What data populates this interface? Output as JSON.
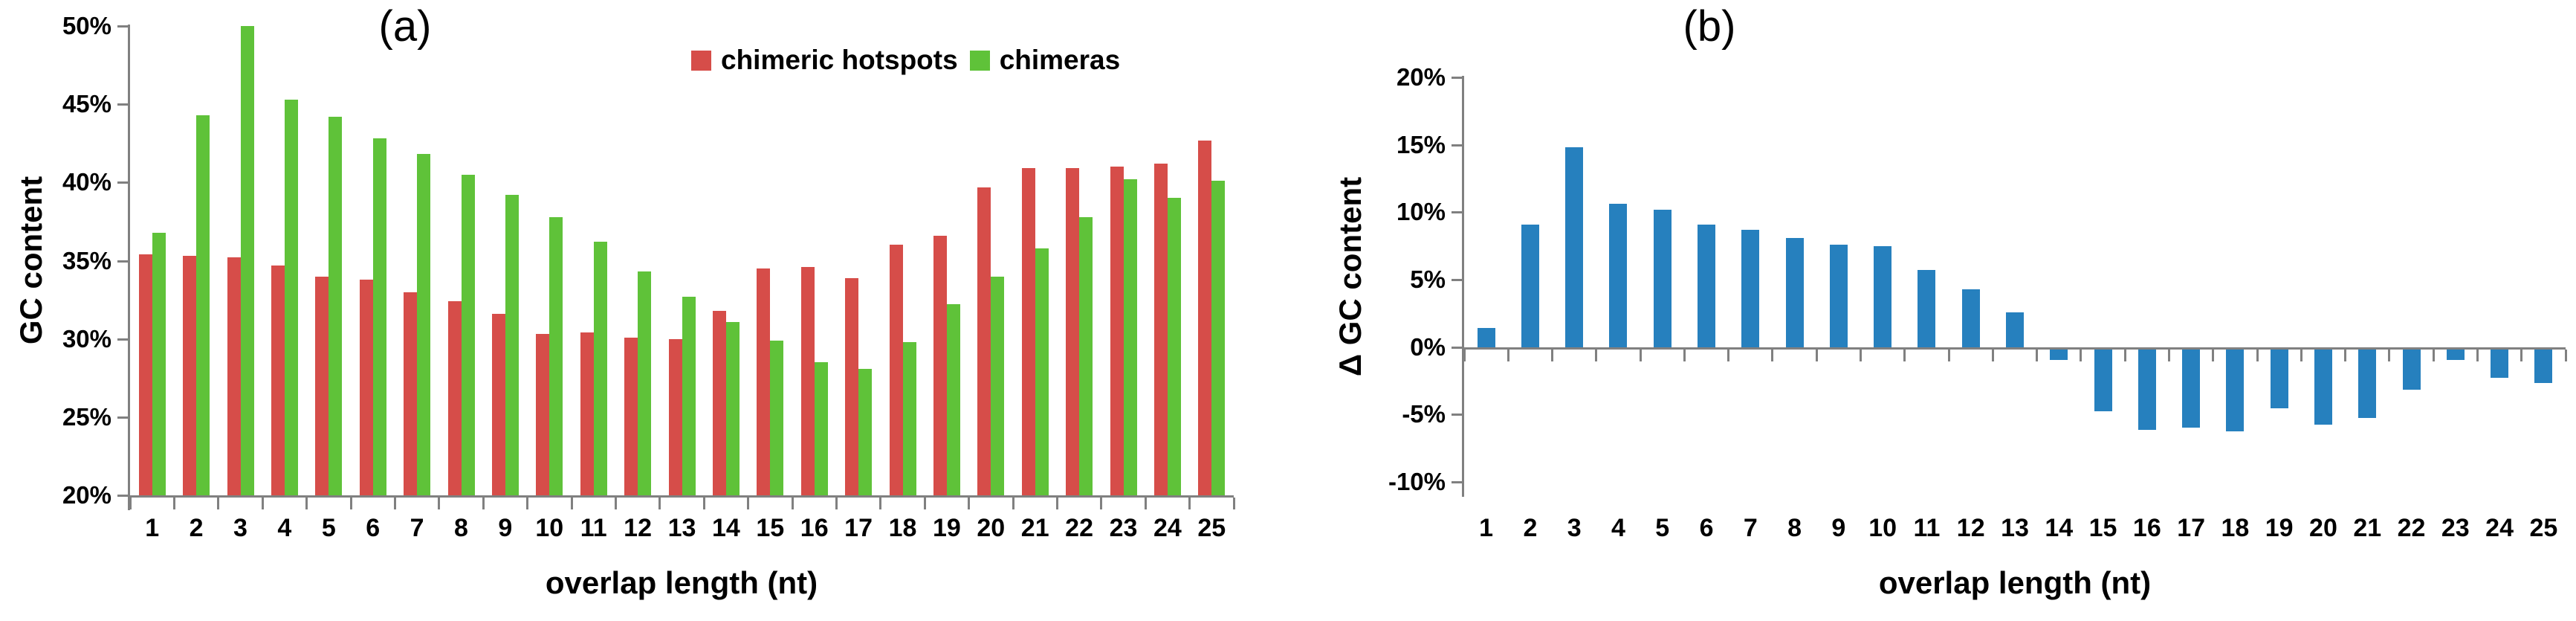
{
  "axis_color": "#808080",
  "text_color": "#000000",
  "background": "#ffffff",
  "chart_data": [
    {
      "type": "bar",
      "panel_label": "(a)",
      "xlabel": "overlap length (nt)",
      "ylabel": "GC content",
      "categories": [
        1,
        2,
        3,
        4,
        5,
        6,
        7,
        8,
        9,
        10,
        11,
        12,
        13,
        14,
        15,
        16,
        17,
        18,
        19,
        20,
        21,
        22,
        23,
        24,
        25
      ],
      "series": [
        {
          "name": "chimeric hotspots",
          "color": "#d64d49",
          "values": [
            35.4,
            35.3,
            35.2,
            34.7,
            34.0,
            33.8,
            33.0,
            32.4,
            31.6,
            30.3,
            30.4,
            30.1,
            30.0,
            31.8,
            34.5,
            34.6,
            33.9,
            36.0,
            36.6,
            39.7,
            40.9,
            40.9,
            41.0,
            41.2,
            42.7
          ]
        },
        {
          "name": "chimeras",
          "color": "#5fc239",
          "values": [
            36.8,
            44.3,
            50.0,
            45.3,
            44.2,
            42.8,
            41.8,
            40.5,
            39.2,
            37.8,
            36.2,
            34.3,
            32.7,
            31.1,
            29.9,
            28.5,
            28.1,
            29.8,
            32.2,
            34.0,
            35.8,
            37.8,
            40.2,
            39.0,
            40.1
          ]
        }
      ],
      "ylim": [
        20,
        50
      ],
      "ytick_step": 5,
      "ytick_labels": [
        "50%",
        "45%",
        "40%",
        "35%",
        "30%",
        "25%",
        "20%"
      ],
      "legend_position": "top",
      "grid": false
    },
    {
      "type": "bar",
      "panel_label": "(b)",
      "xlabel": "overlap length (nt)",
      "ylabel": "Δ GC content",
      "categories": [
        1,
        2,
        3,
        4,
        5,
        6,
        7,
        8,
        9,
        10,
        11,
        12,
        13,
        14,
        15,
        16,
        17,
        18,
        19,
        20,
        21,
        22,
        23,
        24,
        25
      ],
      "series": [
        {
          "name": "Δ GC content",
          "color": "#2680be",
          "values": [
            1.4,
            9.1,
            14.8,
            10.6,
            10.2,
            9.1,
            8.7,
            8.1,
            7.6,
            7.5,
            5.7,
            4.3,
            2.6,
            -0.8,
            -4.6,
            -6.0,
            -5.8,
            -6.1,
            -4.4,
            -5.6,
            -5.1,
            -3.0,
            -0.8,
            -2.1,
            -2.5
          ]
        }
      ],
      "ylim": [
        -10,
        20
      ],
      "ytick_step": 5,
      "ytick_labels": [
        "20%",
        "15%",
        "10%",
        "5%",
        "0%",
        "-5%",
        "-10%"
      ],
      "legend_position": "none",
      "grid": false
    }
  ]
}
